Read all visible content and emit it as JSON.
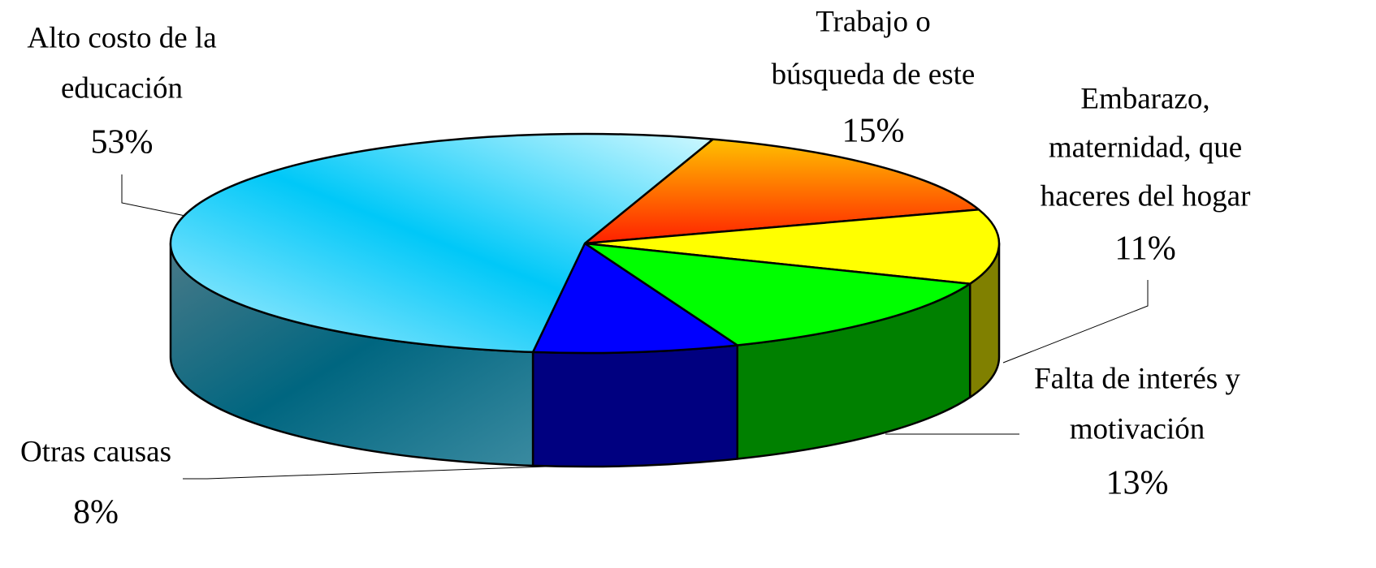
{
  "chart_data": {
    "type": "pie3d",
    "categories": [
      [
        "Trabajo o",
        "búsqueda de este"
      ],
      [
        "Embarazo,",
        "maternidad,  que",
        "haceres del hogar"
      ],
      [
        "Falta de interés y",
        "motivación"
      ],
      [
        "Otras causas"
      ],
      [
        "Alto costo de la",
        "educación"
      ]
    ],
    "values": [
      15,
      11,
      13,
      8,
      53
    ],
    "value_labels": [
      "15%",
      "11%",
      "13%",
      "8%",
      "53%"
    ],
    "colors": [
      "#ff8000",
      "#ffff00",
      "#00ff00",
      "#0000ff",
      "#33ccff"
    ]
  }
}
